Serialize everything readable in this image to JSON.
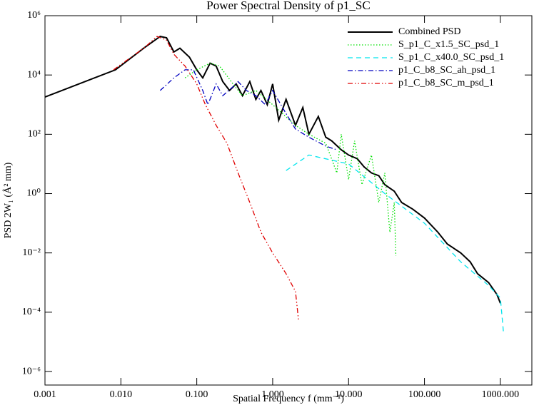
{
  "chart_data": {
    "type": "line",
    "title": "Power Spectral Density of p1_SC",
    "xlabel": "Spatial Frequency f (mm⁻¹)",
    "ylabel": "PSD  2W₁ (Å² mm)",
    "xlog": true,
    "ylog": true,
    "legend": "top-right",
    "xlim": [
      0.001,
      2600
    ],
    "ylim": [
      3.5e-07,
      1000000
    ],
    "xticks": [
      0.001,
      {
        "value": 0.01,
        "label": "0.010"
      },
      {
        "value": 0.1,
        "label": "0.100"
      },
      {
        "value": 1,
        "label": "1.000"
      },
      {
        "value": 10,
        "label": "10.000"
      },
      {
        "value": 100,
        "label": "100.000"
      },
      {
        "value": 1000,
        "label": "1000.000"
      }
    ],
    "yticks": [
      {
        "value": 1000000,
        "label": "10⁶"
      },
      {
        "value": 10000,
        "label": "10⁴"
      },
      {
        "value": 100,
        "label": "10²"
      },
      {
        "value": 1,
        "label": "10⁰"
      },
      {
        "value": 0.01,
        "label": "10⁻²"
      },
      {
        "value": 0.0001,
        "label": "10⁻⁴"
      },
      {
        "value": 1e-06,
        "label": "10⁻⁶"
      }
    ],
    "series": [
      {
        "name": "Combined PSD",
        "color": "#000000",
        "linestyle": "solid",
        "x": [
          0.001,
          0.0085,
          0.02,
          0.033,
          0.04,
          0.05,
          0.06,
          0.08,
          0.1,
          0.12,
          0.15,
          0.18,
          0.22,
          0.27,
          0.33,
          0.4,
          0.5,
          0.6,
          0.7,
          0.85,
          1.0,
          1.2,
          1.5,
          2.0,
          2.5,
          3,
          4,
          5,
          6,
          8,
          10,
          13,
          16,
          20,
          25,
          30,
          40,
          50,
          70,
          100,
          150,
          200,
          300,
          400,
          500,
          700,
          900,
          1000
        ],
        "values": [
          1800,
          15000,
          80000,
          200000,
          180000,
          60000,
          80000,
          40000,
          15000,
          8000,
          25000,
          20000,
          6000,
          3000,
          5000,
          2000,
          6000,
          1500,
          3000,
          1000,
          5000,
          300,
          1500,
          200,
          800,
          100,
          400,
          80,
          60,
          30,
          20,
          15,
          8,
          5,
          4,
          2,
          1.2,
          0.5,
          0.3,
          0.15,
          0.05,
          0.02,
          0.01,
          0.005,
          0.002,
          0.001,
          0.0004,
          0.0002
        ]
      },
      {
        "name": "S_p1_C_x1.5_SC_psd_1",
        "color": "#00e000",
        "linestyle": "dotted",
        "x": [
          0.07,
          0.1,
          0.15,
          0.2,
          0.3,
          0.4,
          0.6,
          1,
          2,
          3,
          5,
          7,
          8,
          10,
          12,
          15,
          20,
          25,
          30,
          35,
          40,
          42
        ],
        "values": [
          8000,
          15000,
          25000,
          20000,
          5000,
          2000,
          3000,
          1000,
          200,
          100,
          50,
          5,
          100,
          3,
          60,
          2,
          20,
          0.5,
          5,
          0.05,
          0.5,
          0.008
        ]
      },
      {
        "name": "S_p1_C_x40.0_SC_psd_1",
        "color": "#00e5ee",
        "linestyle": "dashed",
        "x": [
          1.5,
          3,
          10,
          30,
          100,
          300,
          700,
          1000,
          1100
        ],
        "values": [
          6,
          20,
          10,
          1,
          0.1,
          0.005,
          0.0008,
          0.0003,
          2e-05
        ]
      },
      {
        "name": "p1_C_b8_SC_ah_psd_1",
        "color": "#0000c0",
        "linestyle": "dashdot",
        "x": [
          0.033,
          0.05,
          0.07,
          0.09,
          0.12,
          0.14,
          0.18,
          0.22,
          0.3,
          0.35,
          0.45,
          0.6,
          0.8,
          1,
          1.5,
          2,
          3,
          5,
          7
        ],
        "values": [
          3000,
          8000,
          15000,
          15000,
          3000,
          1000,
          5000,
          2000,
          4000,
          6000,
          3000,
          2000,
          1000,
          3000,
          500,
          150,
          80,
          40,
          30
        ]
      },
      {
        "name": "p1_C_b8_SC_m_psd_1",
        "color": "#e00000",
        "linestyle": "dashdotdot",
        "x": [
          0.008,
          0.02,
          0.03,
          0.04,
          0.05,
          0.07,
          0.1,
          0.13,
          0.18,
          0.25,
          0.35,
          0.5,
          0.7,
          1.0,
          1.5,
          2.0,
          2.2
        ],
        "values": [
          15000,
          80000,
          200000,
          150000,
          50000,
          20000,
          5000,
          1000,
          200,
          50,
          5,
          0.5,
          0.05,
          0.01,
          0.002,
          0.0005,
          5e-05
        ]
      }
    ]
  }
}
